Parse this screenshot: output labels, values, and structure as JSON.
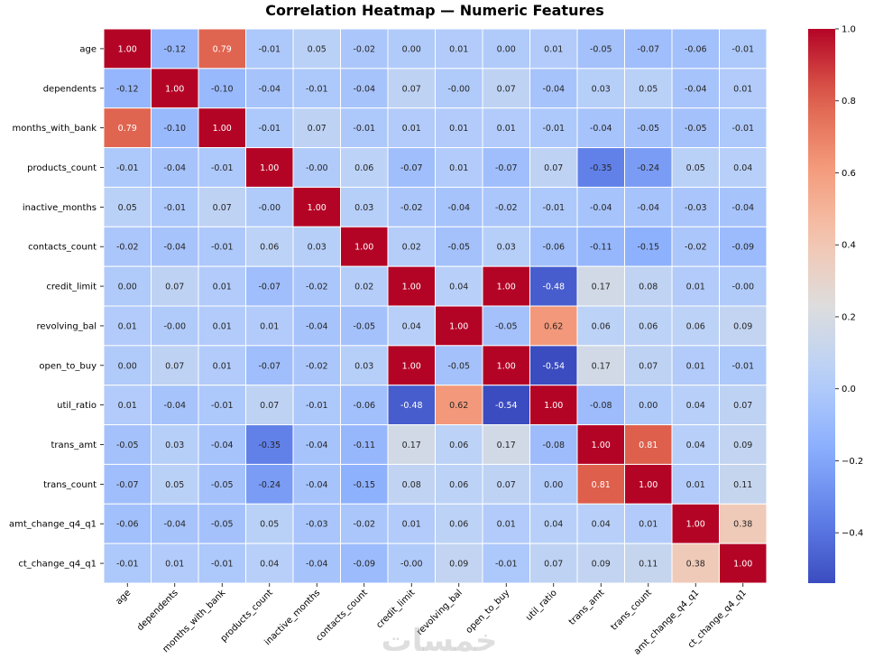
{
  "chart_data": {
    "type": "heatmap",
    "title": "Correlation Heatmap — Numeric Features",
    "xlabel": "",
    "ylabel": "",
    "labels": [
      "age",
      "dependents",
      "months_with_bank",
      "products_count",
      "inactive_months",
      "contacts_count",
      "credit_limit",
      "revolving_bal",
      "open_to_buy",
      "util_ratio",
      "trans_amt",
      "trans_count",
      "amt_change_q4_q1",
      "ct_change_q4_q1"
    ],
    "matrix": [
      [
        1.0,
        -0.12,
        0.79,
        -0.01,
        0.05,
        -0.02,
        0.0,
        0.01,
        0.0,
        0.01,
        -0.05,
        -0.07,
        -0.06,
        -0.01
      ],
      [
        -0.12,
        1.0,
        -0.1,
        -0.04,
        -0.01,
        -0.04,
        0.07,
        -0.0,
        0.07,
        -0.04,
        0.03,
        0.05,
        -0.04,
        0.01
      ],
      [
        0.79,
        -0.1,
        1.0,
        -0.01,
        0.07,
        -0.01,
        0.01,
        0.01,
        0.01,
        -0.01,
        -0.04,
        -0.05,
        -0.05,
        -0.01
      ],
      [
        -0.01,
        -0.04,
        -0.01,
        1.0,
        -0.0,
        0.06,
        -0.07,
        0.01,
        -0.07,
        0.07,
        -0.35,
        -0.24,
        0.05,
        0.04
      ],
      [
        0.05,
        -0.01,
        0.07,
        -0.0,
        1.0,
        0.03,
        -0.02,
        -0.04,
        -0.02,
        -0.01,
        -0.04,
        -0.04,
        -0.03,
        -0.04
      ],
      [
        -0.02,
        -0.04,
        -0.01,
        0.06,
        0.03,
        1.0,
        0.02,
        -0.05,
        0.03,
        -0.06,
        -0.11,
        -0.15,
        -0.02,
        -0.09
      ],
      [
        0.0,
        0.07,
        0.01,
        -0.07,
        -0.02,
        0.02,
        1.0,
        0.04,
        1.0,
        -0.48,
        0.17,
        0.08,
        0.01,
        -0.0
      ],
      [
        0.01,
        -0.0,
        0.01,
        0.01,
        -0.04,
        -0.05,
        0.04,
        1.0,
        -0.05,
        0.62,
        0.06,
        0.06,
        0.06,
        0.09
      ],
      [
        0.0,
        0.07,
        0.01,
        -0.07,
        -0.02,
        0.03,
        1.0,
        -0.05,
        1.0,
        -0.54,
        0.17,
        0.07,
        0.01,
        -0.01
      ],
      [
        0.01,
        -0.04,
        -0.01,
        0.07,
        -0.01,
        -0.06,
        -0.48,
        0.62,
        -0.54,
        1.0,
        -0.08,
        0.0,
        0.04,
        0.07
      ],
      [
        -0.05,
        0.03,
        -0.04,
        -0.35,
        -0.04,
        -0.11,
        0.17,
        0.06,
        0.17,
        -0.08,
        1.0,
        0.81,
        0.04,
        0.09
      ],
      [
        -0.07,
        0.05,
        -0.05,
        -0.24,
        -0.04,
        -0.15,
        0.08,
        0.06,
        0.07,
        0.0,
        0.81,
        1.0,
        0.01,
        0.11
      ],
      [
        -0.06,
        -0.04,
        -0.05,
        0.05,
        -0.03,
        -0.02,
        0.01,
        0.06,
        0.01,
        0.04,
        0.04,
        0.01,
        1.0,
        0.38
      ],
      [
        -0.01,
        0.01,
        -0.01,
        0.04,
        -0.04,
        -0.09,
        -0.0,
        0.09,
        -0.01,
        0.07,
        0.09,
        0.11,
        0.38,
        1.0
      ]
    ],
    "color_scale": {
      "colormap": "coolwarm",
      "vmin": -0.54,
      "vmax": 1.0,
      "ticks": [
        1.0,
        0.8,
        0.6,
        0.4,
        0.2,
        0.0,
        -0.2,
        -0.4
      ],
      "tick_labels": [
        "1.0",
        "0.8",
        "0.6",
        "0.4",
        "0.2",
        "0.0",
        "−0.2",
        "−0.4"
      ]
    },
    "annotation_format": "0.00",
    "colors": {
      "background": "#ffffff",
      "text_dark": "#262626",
      "text_light": "#ffffff"
    }
  },
  "watermark": "خمسات"
}
